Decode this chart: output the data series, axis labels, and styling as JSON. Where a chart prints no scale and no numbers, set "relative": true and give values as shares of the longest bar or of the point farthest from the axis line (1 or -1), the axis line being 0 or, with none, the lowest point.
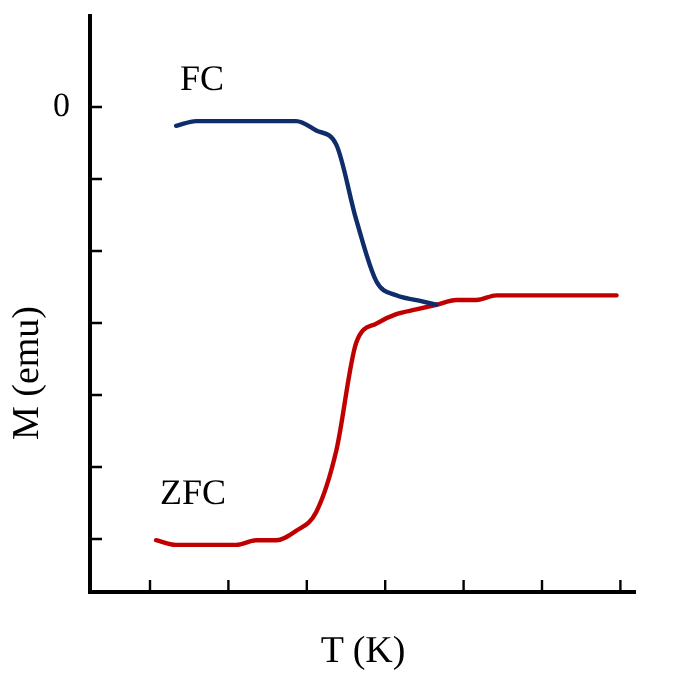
{
  "chart_data": {
    "type": "line",
    "relative": true,
    "xlabel": "T (K)",
    "ylabel": "M (emu)",
    "annotations": [
      "0"
    ],
    "categories": [
      null,
      null,
      null,
      null,
      null,
      null,
      null,
      null,
      null,
      null,
      null,
      null,
      null,
      null,
      null,
      null,
      null,
      null,
      null,
      null,
      null,
      null,
      null,
      null
    ],
    "series": [
      {
        "name": "FC",
        "color": "#0f2d6b",
        "values": [
          null,
          0.99,
          1.0,
          1,
          1,
          1,
          1,
          1.0,
          0.98,
          0.95,
          0.79,
          0.66,
          0.63,
          0.62,
          0.61,
          null,
          null,
          null,
          null,
          null,
          null,
          null,
          null,
          null
        ]
      },
      {
        "name": "ZFC",
        "color": "#c00000",
        "values": [
          0.11,
          0.1,
          0.1,
          0.1,
          0.1,
          0.11,
          0.11,
          0.13,
          0.17,
          0.3,
          0.53,
          0.57,
          0.59,
          0.6,
          0.61,
          0.62,
          0.62,
          0.63,
          0.63,
          0.63,
          0.63,
          0.63,
          0.63,
          0.63
        ]
      }
    ],
    "legend": false,
    "marker": "none",
    "line_style": "solid"
  }
}
